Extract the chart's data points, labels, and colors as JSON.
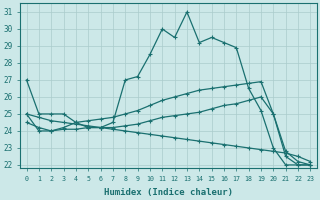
{
  "xlabel": "Humidex (Indice chaleur)",
  "bg_color": "#cce8e8",
  "grid_color": "#aacccc",
  "line_color": "#1a7070",
  "xlim": [
    -0.5,
    23.5
  ],
  "ylim": [
    21.8,
    31.5
  ],
  "yticks": [
    22,
    23,
    24,
    25,
    26,
    27,
    28,
    29,
    30,
    31
  ],
  "xticks": [
    0,
    1,
    2,
    3,
    4,
    5,
    6,
    7,
    8,
    9,
    10,
    11,
    12,
    13,
    14,
    15,
    16,
    17,
    18,
    19,
    20,
    21,
    22,
    23
  ],
  "series1_x": [
    0,
    1,
    2,
    3,
    4,
    5,
    6,
    7,
    8,
    9,
    10,
    11,
    12,
    13,
    14,
    15,
    16,
    17,
    18,
    19,
    20,
    21,
    22,
    23
  ],
  "series1_y": [
    27,
    25,
    25,
    25,
    24.5,
    24.2,
    24.2,
    24.5,
    27,
    27.2,
    28.5,
    30,
    29.5,
    31,
    29.2,
    29.5,
    29.2,
    28.9,
    26.5,
    25.2,
    23.0,
    22.0,
    22.0,
    22.0
  ],
  "series2_x": [
    0,
    1,
    2,
    3,
    4,
    5,
    6,
    7,
    8,
    9,
    10,
    11,
    12,
    13,
    14,
    15,
    16,
    17,
    18,
    19,
    20,
    21,
    22,
    23
  ],
  "series2_y": [
    25,
    24.0,
    24.0,
    24.1,
    24.1,
    24.2,
    24.2,
    24.2,
    24.3,
    24.4,
    24.6,
    24.8,
    24.9,
    25.0,
    25.1,
    25.3,
    25.5,
    25.6,
    25.8,
    26.0,
    25.0,
    22.5,
    22.0,
    22.0
  ],
  "series3_x": [
    0,
    1,
    2,
    3,
    4,
    5,
    6,
    7,
    8,
    9,
    10,
    11,
    12,
    13,
    14,
    15,
    16,
    17,
    18,
    19,
    20,
    21,
    22,
    23
  ],
  "series3_y": [
    24.5,
    24.2,
    24.0,
    24.2,
    24.5,
    24.6,
    24.7,
    24.8,
    25.0,
    25.2,
    25.5,
    25.8,
    26.0,
    26.2,
    26.4,
    26.5,
    26.6,
    26.7,
    26.8,
    26.9,
    25.0,
    22.8,
    22.2,
    22.0
  ],
  "series4_x": [
    0,
    1,
    2,
    3,
    4,
    5,
    6,
    7,
    8,
    9,
    10,
    11,
    12,
    13,
    14,
    15,
    16,
    17,
    18,
    19,
    20,
    21,
    22,
    23
  ],
  "series4_y": [
    25.0,
    24.8,
    24.6,
    24.5,
    24.4,
    24.3,
    24.2,
    24.1,
    24.0,
    23.9,
    23.8,
    23.7,
    23.6,
    23.5,
    23.4,
    23.3,
    23.2,
    23.1,
    23.0,
    22.9,
    22.8,
    22.7,
    22.5,
    22.2
  ]
}
